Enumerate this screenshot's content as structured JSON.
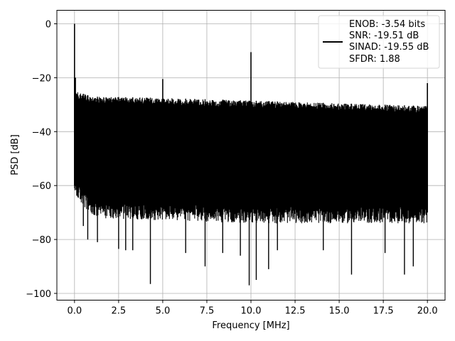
{
  "chart_data": {
    "type": "line",
    "xlabel": "Frequency [MHz]",
    "ylabel": "PSD [dB]",
    "xlim": [
      -1.0,
      21.0
    ],
    "ylim": [
      -102.5,
      5.0
    ],
    "xticks": [
      0.0,
      2.5,
      5.0,
      7.5,
      10.0,
      12.5,
      15.0,
      17.5,
      20.0
    ],
    "xtick_labels": [
      "0.0",
      "2.5",
      "5.0",
      "7.5",
      "10.0",
      "12.5",
      "15.0",
      "17.5",
      "20.0"
    ],
    "yticks": [
      0,
      -20,
      -40,
      -60,
      -80,
      -100
    ],
    "ytick_labels": [
      "0",
      "−20",
      "−40",
      "−60",
      "−80",
      "−100"
    ],
    "grid": true,
    "legend": {
      "placement": "top-right",
      "line_color": "#000000",
      "entries": [
        "ENOB: -3.54 bits",
        "SNR: -19.51 dB",
        "SINAD: -19.55 dB",
        "SFDR: 1.88"
      ]
    },
    "series": [
      {
        "color": "#000000",
        "frequency_range_mhz": [
          0.0,
          20.0
        ],
        "noise_upper_db": [
          [
            0.05,
            -25.0
          ],
          [
            1.0,
            -27.0
          ],
          [
            5.0,
            -27.5
          ],
          [
            10.0,
            -28.5
          ],
          [
            15.0,
            -29.5
          ],
          [
            20.0,
            -30.5
          ]
        ],
        "noise_lower_db": [
          [
            0.05,
            -60.0
          ],
          [
            1.0,
            -68.0
          ],
          [
            10.0,
            -70.0
          ],
          [
            20.0,
            -70.0
          ]
        ],
        "spurs": [
          {
            "x": 0.0,
            "y": 0.0
          },
          {
            "x": 0.05,
            "y": -20.0
          },
          {
            "x": 5.0,
            "y": -20.5
          },
          {
            "x": 10.0,
            "y": -10.5
          },
          {
            "x": 20.0,
            "y": -22.0
          }
        ],
        "dips": [
          {
            "x": 0.5,
            "y": -75.0
          },
          {
            "x": 0.75,
            "y": -80.0
          },
          {
            "x": 1.3,
            "y": -81.0
          },
          {
            "x": 2.5,
            "y": -83.5
          },
          {
            "x": 2.9,
            "y": -84.0
          },
          {
            "x": 3.3,
            "y": -84.0
          },
          {
            "x": 4.3,
            "y": -96.5
          },
          {
            "x": 6.3,
            "y": -85.0
          },
          {
            "x": 7.4,
            "y": -90.0
          },
          {
            "x": 8.4,
            "y": -85.0
          },
          {
            "x": 9.4,
            "y": -86.0
          },
          {
            "x": 9.9,
            "y": -97.0
          },
          {
            "x": 10.3,
            "y": -95.0
          },
          {
            "x": 11.0,
            "y": -91.0
          },
          {
            "x": 11.5,
            "y": -84.0
          },
          {
            "x": 14.1,
            "y": -84.0
          },
          {
            "x": 15.7,
            "y": -93.0
          },
          {
            "x": 17.6,
            "y": -85.0
          },
          {
            "x": 18.7,
            "y": -93.0
          },
          {
            "x": 19.2,
            "y": -90.0
          }
        ]
      }
    ]
  }
}
